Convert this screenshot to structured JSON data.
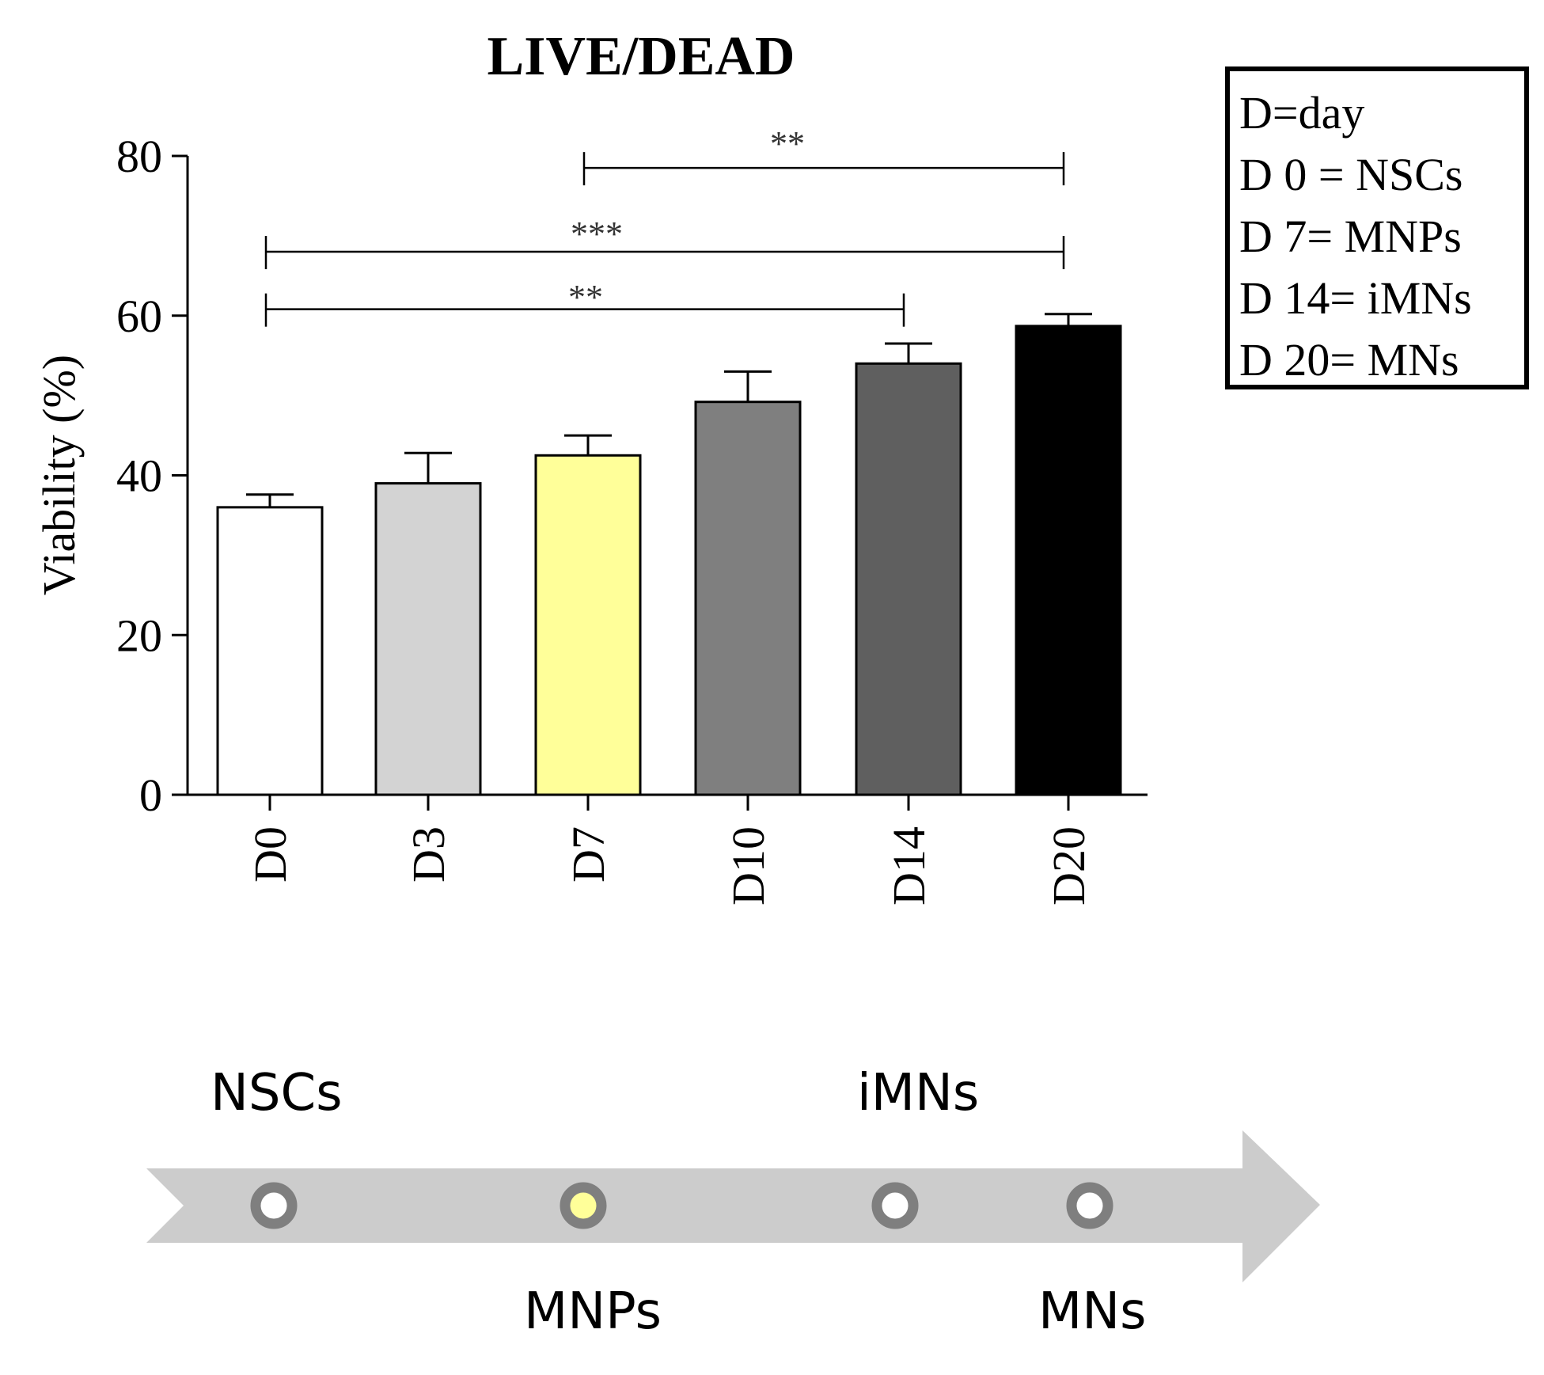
{
  "chart_data": {
    "type": "bar",
    "title": "LIVE/DEAD",
    "ylabel": "Viability (%)",
    "xlabel": "",
    "ylim": [
      0,
      80
    ],
    "yticks": [
      0,
      20,
      40,
      60,
      80
    ],
    "categories": [
      "D0",
      "D3",
      "D7",
      "D10",
      "D14",
      "D20"
    ],
    "values": [
      36,
      39,
      42.5,
      49.2,
      54,
      58.7
    ],
    "errors": [
      1.6,
      3.8,
      2.5,
      3.8,
      2.5,
      1.5
    ],
    "bar_colors": [
      "#ffffff",
      "#d3d3d3",
      "#ffff99",
      "#7f7f7f",
      "#5f5f5f",
      "#000000"
    ],
    "significance": [
      {
        "from": "D7",
        "to": "D20",
        "label": "**",
        "y": 78.5
      },
      {
        "from": "D0",
        "to": "D20",
        "label": "***",
        "y": 68
      },
      {
        "from": "D0",
        "to": "D14",
        "label": "**",
        "y": 60.8
      }
    ]
  },
  "legend": {
    "lines": [
      "D=day",
      "D 0 = NSCs",
      "D 7= MNPs",
      "D 14= iMNs",
      "D 20= MNs"
    ]
  },
  "timeline": {
    "nodes": [
      {
        "label": "NSCs",
        "fill": "#ffffff",
        "label_pos": "above"
      },
      {
        "label": "MNPs",
        "fill": "#ffff99",
        "label_pos": "below"
      },
      {
        "label": "iMNs",
        "fill": "#ffffff",
        "label_pos": "above"
      },
      {
        "label": "MNs",
        "fill": "#ffffff",
        "label_pos": "below"
      }
    ],
    "arrow_color": "#cccccc",
    "ring_color": "#7f7f7f"
  }
}
